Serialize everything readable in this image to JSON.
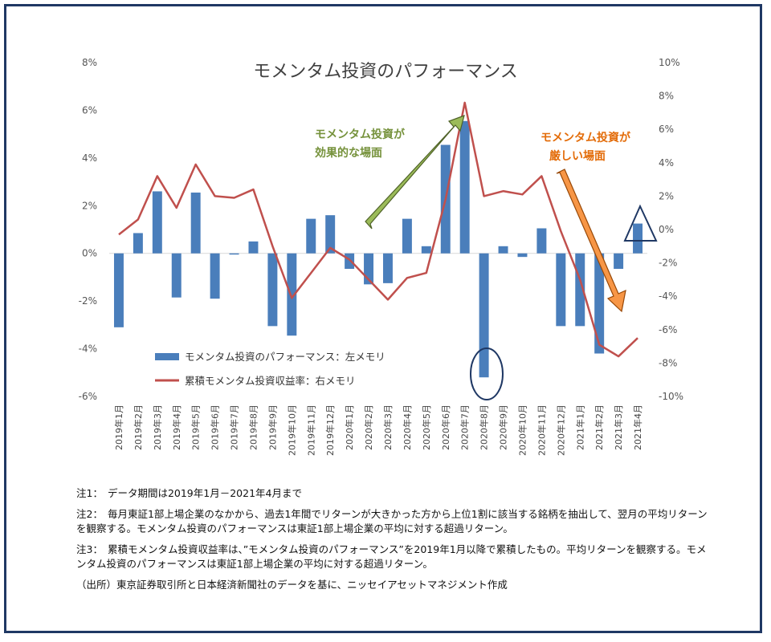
{
  "chart_data": {
    "type": "bar+line",
    "title": "モメンタム投資のパフォーマンス",
    "categories": [
      "2019年1月",
      "2019年2月",
      "2019年3月",
      "2019年4月",
      "2019年5月",
      "2019年6月",
      "2019年7月",
      "2019年8月",
      "2019年9月",
      "2019年10月",
      "2019年11月",
      "2019年12月",
      "2020年1月",
      "2020年2月",
      "2020年3月",
      "2020年4月",
      "2020年5月",
      "2020年6月",
      "2020年7月",
      "2020年8月",
      "2020年9月",
      "2020年10月",
      "2020年11月",
      "2020年12月",
      "2021年1月",
      "2021年2月",
      "2021年3月",
      "2021年4月"
    ],
    "series": [
      {
        "name": "モメンタム投資のパフォーマンス：左メモリ",
        "type": "bar",
        "axis": "left",
        "color": "#4a7ebb",
        "values": [
          -3.1,
          0.85,
          2.6,
          -1.85,
          2.55,
          -1.9,
          -0.05,
          0.5,
          -3.05,
          -3.45,
          1.45,
          1.6,
          -0.65,
          -1.3,
          -1.25,
          1.45,
          0.3,
          4.55,
          5.55,
          -5.2,
          0.3,
          -0.15,
          1.05,
          -3.05,
          -3.05,
          -4.2,
          -0.65,
          1.25
        ]
      },
      {
        "name": "累積モメンタム投資収益率：右メモリ",
        "type": "line",
        "axis": "right",
        "color": "#c0504d",
        "values": [
          -0.3,
          0.6,
          3.2,
          1.3,
          3.9,
          2.0,
          1.9,
          2.4,
          -1.0,
          -4.1,
          -2.6,
          -1.1,
          -1.8,
          -3.0,
          -4.2,
          -2.9,
          -2.6,
          1.8,
          7.6,
          2.0,
          2.3,
          2.1,
          3.2,
          -0.1,
          -3.0,
          -6.9,
          -7.6,
          -6.5
        ]
      }
    ],
    "left_axis": {
      "ylim": [
        -6,
        8
      ],
      "ticks": [
        "-6%",
        "-4%",
        "-2%",
        "0%",
        "2%",
        "4%",
        "6%",
        "8%"
      ]
    },
    "right_axis": {
      "ylim": [
        -10,
        10
      ],
      "ticks": [
        "-10%",
        "-8%",
        "-6%",
        "-4%",
        "-2%",
        "0%",
        "2%",
        "4%",
        "6%",
        "8%",
        "10%"
      ]
    },
    "annotations": {
      "green": {
        "line1": "モメンタム投資が",
        "line2": "効果的な場面",
        "color": "#76923c"
      },
      "orange": {
        "line1": "モメンタム投資が",
        "line2": "厳しい場面",
        "color": "#e36c09"
      }
    },
    "legend_position": "lower-left"
  },
  "notes": [
    {
      "label": "注1：",
      "text": "データ期間は2019年1月－2021年4月まで"
    },
    {
      "label": "注2：",
      "text": "毎月東証1部上場企業のなかから、過去1年間でリターンが大きかった方から上位1割に該当する銘柄を抽出して、翌月の平均リターンを観察する。モメンタム投資のパフォーマンスは東証1部上場企業の平均に対する超過リターン。"
    },
    {
      "label": "注3：",
      "text": "累積モメンタム投資収益率は、”モメンタム投資のパフォーマンス”を2019年1月以降で累積したもの。平均リターンを観察する。モメンタム投資のパフォーマンスは東証1部上場企業の平均に対する超過リターン。"
    }
  ],
  "source": "（出所）東京証券取引所と日本経済新聞社のデータを基に、ニッセイアセットマネジメント作成",
  "colors": {
    "frame": "#1f3864",
    "marker": "#1f3864"
  }
}
